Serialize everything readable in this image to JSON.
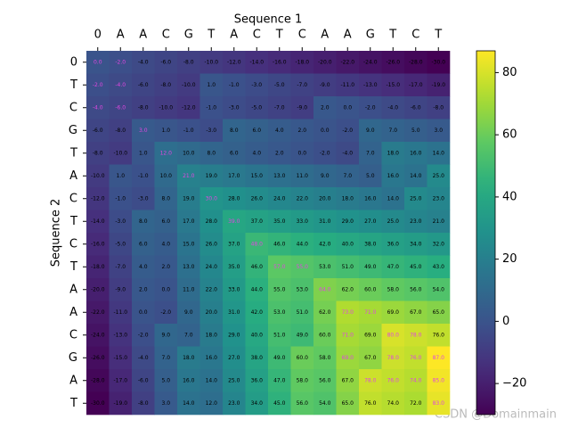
{
  "chart_data": {
    "type": "heatmap",
    "x_label": "Sequence 1",
    "y_label": "Sequence 2",
    "x_categories": [
      "0",
      "A",
      "A",
      "C",
      "G",
      "T",
      "A",
      "C",
      "T",
      "C",
      "A",
      "A",
      "G",
      "T",
      "C",
      "T"
    ],
    "y_categories": [
      "0",
      "T",
      "C",
      "G",
      "T",
      "A",
      "C",
      "T",
      "C",
      "T",
      "A",
      "A",
      "C",
      "G",
      "A",
      "T"
    ],
    "values": [
      [
        0,
        -2,
        -4,
        -6,
        -8,
        -10,
        -12,
        -14,
        -16,
        -18,
        -20,
        -22,
        -24,
        -26,
        -28,
        -30
      ],
      [
        -2,
        -4,
        -6,
        -8,
        -10,
        1,
        -1,
        -3,
        -5,
        -7,
        -9,
        -11,
        -13,
        -15,
        -17,
        -19
      ],
      [
        -4,
        -6,
        -8,
        -10,
        -12,
        -1,
        -3,
        -5,
        -7,
        -9,
        2,
        0,
        -2,
        -4,
        -6,
        -8
      ],
      [
        -6,
        -8,
        3,
        1,
        -1,
        -3,
        8,
        6,
        4,
        2,
        0,
        -2,
        9,
        7,
        5,
        3
      ],
      [
        -8,
        -10,
        1,
        12,
        10,
        8,
        6,
        4,
        2,
        0,
        -2,
        -4,
        7,
        18,
        16,
        14
      ],
      [
        -10,
        1,
        -1,
        10,
        21,
        19,
        17,
        15,
        13,
        11,
        9,
        7,
        5,
        16,
        14,
        25
      ],
      [
        -12,
        -1,
        -3,
        8,
        19,
        30,
        28,
        26,
        24,
        22,
        20,
        18,
        16,
        14,
        25,
        23
      ],
      [
        -14,
        -3,
        8,
        6,
        17,
        28,
        39,
        37,
        35,
        33,
        31,
        29,
        27,
        25,
        23,
        21
      ],
      [
        -16,
        -5,
        6,
        4,
        15,
        26,
        37,
        48,
        46,
        44,
        42,
        40,
        38,
        36,
        34,
        32
      ],
      [
        -18,
        -7,
        4,
        2,
        13,
        24,
        35,
        46,
        57,
        55,
        53,
        51,
        49,
        47,
        45,
        43
      ],
      [
        -20,
        -9,
        2,
        0,
        11,
        22,
        33,
        44,
        55,
        53,
        64,
        62,
        60,
        58,
        56,
        54
      ],
      [
        -22,
        -11,
        0,
        -2,
        9,
        20,
        31,
        42,
        53,
        51,
        62,
        73,
        71,
        69,
        67,
        65
      ],
      [
        -24,
        -13,
        -2,
        9,
        7,
        18,
        29,
        40,
        51,
        49,
        60,
        71,
        69,
        80,
        78,
        76
      ],
      [
        -26,
        -15,
        -4,
        7,
        18,
        16,
        27,
        38,
        49,
        60,
        58,
        69,
        67,
        78,
        76,
        87
      ],
      [
        -28,
        -17,
        -6,
        5,
        16,
        14,
        25,
        36,
        47,
        58,
        56,
        67,
        78,
        76,
        74,
        85
      ],
      [
        -30,
        -19,
        -8,
        3,
        14,
        12,
        23,
        34,
        45,
        56,
        54,
        65,
        76,
        74,
        72,
        83
      ]
    ],
    "value_labels": [
      [
        "0.0",
        "-2.0",
        "-4.0",
        "-6.0",
        "-8.0",
        "-10.0",
        "-12.0",
        "-14.0",
        "-16.0",
        "-18.0",
        "-20.0",
        "-22.0",
        "-24.0",
        "-26.0",
        "-28.0",
        "-30.0"
      ],
      [
        "-2.0",
        "-4.0",
        "-6.0",
        "-8.0",
        "-10.0",
        "1.0",
        "-1.0",
        "-3.0",
        "-5.0",
        "-7.0",
        "-9.0",
        "-11.0",
        "-13.0",
        "-15.0",
        "-17.0",
        "-19.0"
      ],
      [
        "-4.0",
        "-6.0",
        "-8.0",
        "-10.0",
        "-12.0",
        "-1.0",
        "-3.0",
        "-5.0",
        "-7.0",
        "-9.0",
        "2.0",
        "0.0",
        "-2.0",
        "-4.0",
        "-6.0",
        "-8.0"
      ],
      [
        "-6.0",
        "-8.0",
        "3.0",
        "1.0",
        "-1.0",
        "-3.0",
        "8.0",
        "6.0",
        "4.0",
        "2.0",
        "0.0",
        "-2.0",
        "9.0",
        "7.0",
        "5.0",
        "3.0"
      ],
      [
        "-8.0",
        "-10.0",
        "1.0",
        "12.0",
        "10.0",
        "8.0",
        "6.0",
        "4.0",
        "2.0",
        "0.0",
        "-2.0",
        "-4.0",
        "7.0",
        "18.0",
        "16.0",
        "14.0"
      ],
      [
        "-10.0",
        "1.0",
        "-1.0",
        "10.0",
        "21.0",
        "19.0",
        "17.0",
        "15.0",
        "13.0",
        "11.0",
        "9.0",
        "7.0",
        "5.0",
        "16.0",
        "14.0",
        "25.0"
      ],
      [
        "-12.0",
        "-1.0",
        "-3.0",
        "8.0",
        "19.0",
        "30.0",
        "28.0",
        "26.0",
        "24.0",
        "22.0",
        "20.0",
        "18.0",
        "16.0",
        "14.0",
        "25.0",
        "23.0"
      ],
      [
        "-14.0",
        "-3.0",
        "8.0",
        "6.0",
        "17.0",
        "28.0",
        "39.0",
        "37.0",
        "35.0",
        "33.0",
        "31.0",
        "29.0",
        "27.0",
        "25.0",
        "23.0",
        "21.0"
      ],
      [
        "-16.0",
        "-5.0",
        "6.0",
        "4.0",
        "15.0",
        "26.0",
        "37.0",
        "48.0",
        "46.0",
        "44.0",
        "42.0",
        "40.0",
        "38.0",
        "36.0",
        "34.0",
        "32.0"
      ],
      [
        "-18.0",
        "-7.0",
        "4.0",
        "2.0",
        "13.0",
        "24.0",
        "35.0",
        "46.0",
        "57.0",
        "55.0",
        "53.0",
        "51.0",
        "49.0",
        "47.0",
        "45.0",
        "43.0"
      ],
      [
        "-20.0",
        "-9.0",
        "2.0",
        "0.0",
        "11.0",
        "22.0",
        "33.0",
        "44.0",
        "55.0",
        "53.0",
        "64.0",
        "62.0",
        "60.0",
        "58.0",
        "56.0",
        "54.0"
      ],
      [
        "-22.0",
        "-11.0",
        "0.0",
        "-2.0",
        "9.0",
        "20.0",
        "31.0",
        "42.0",
        "53.0",
        "51.0",
        "62.0",
        "73.0",
        "71.0",
        "69.0",
        "67.0",
        "65.0"
      ],
      [
        "-24.0",
        "-13.0",
        "-2.0",
        "9.0",
        "7.0",
        "18.0",
        "29.0",
        "40.0",
        "51.0",
        "49.0",
        "60.0",
        "71.0",
        "69.0",
        "80.0",
        "78.0",
        "76.0"
      ],
      [
        "-26.0",
        "-15.0",
        "-4.0",
        "7.0",
        "18.0",
        "16.0",
        "27.0",
        "38.0",
        "49.0",
        "60.0",
        "58.0",
        "69.0",
        "67.0",
        "78.0",
        "76.0",
        "87.0"
      ],
      [
        "-28.0",
        "-17.0",
        "-6.0",
        "5.0",
        "16.0",
        "14.0",
        "25.0",
        "36.0",
        "47.0",
        "58.0",
        "56.0",
        "67.0",
        "78.0",
        "76.0",
        "74.0",
        "85.0"
      ],
      [
        "-30.0",
        "-19.0",
        "-8.0",
        "3.0",
        "14.0",
        "12.0",
        "23.0",
        "34.0",
        "45.0",
        "56.0",
        "54.0",
        "65.0",
        "76.0",
        "74.0",
        "72.0",
        "83.0"
      ]
    ],
    "highlighted_cells": [
      [
        0,
        0
      ],
      [
        0,
        1
      ],
      [
        1,
        0
      ],
      [
        1,
        1
      ],
      [
        2,
        0
      ],
      [
        2,
        1
      ],
      [
        3,
        2
      ],
      [
        4,
        3
      ],
      [
        5,
        4
      ],
      [
        6,
        5
      ],
      [
        7,
        6
      ],
      [
        8,
        7
      ],
      [
        9,
        8
      ],
      [
        9,
        9
      ],
      [
        10,
        10
      ],
      [
        11,
        11
      ],
      [
        11,
        12
      ],
      [
        12,
        11
      ],
      [
        12,
        13
      ],
      [
        12,
        14
      ],
      [
        13,
        11
      ],
      [
        13,
        13
      ],
      [
        13,
        14
      ],
      [
        13,
        15
      ],
      [
        14,
        12
      ],
      [
        14,
        13
      ],
      [
        14,
        14
      ],
      [
        14,
        15
      ],
      [
        15,
        15
      ]
    ],
    "highlight_color": "#e046e0",
    "colormap": "viridis",
    "clim": [
      -30,
      87
    ],
    "cticks": [
      {
        "value": -20,
        "label": "−20"
      },
      0,
      20,
      40,
      60,
      80
    ]
  },
  "watermark": "CSDN @Domainmain"
}
